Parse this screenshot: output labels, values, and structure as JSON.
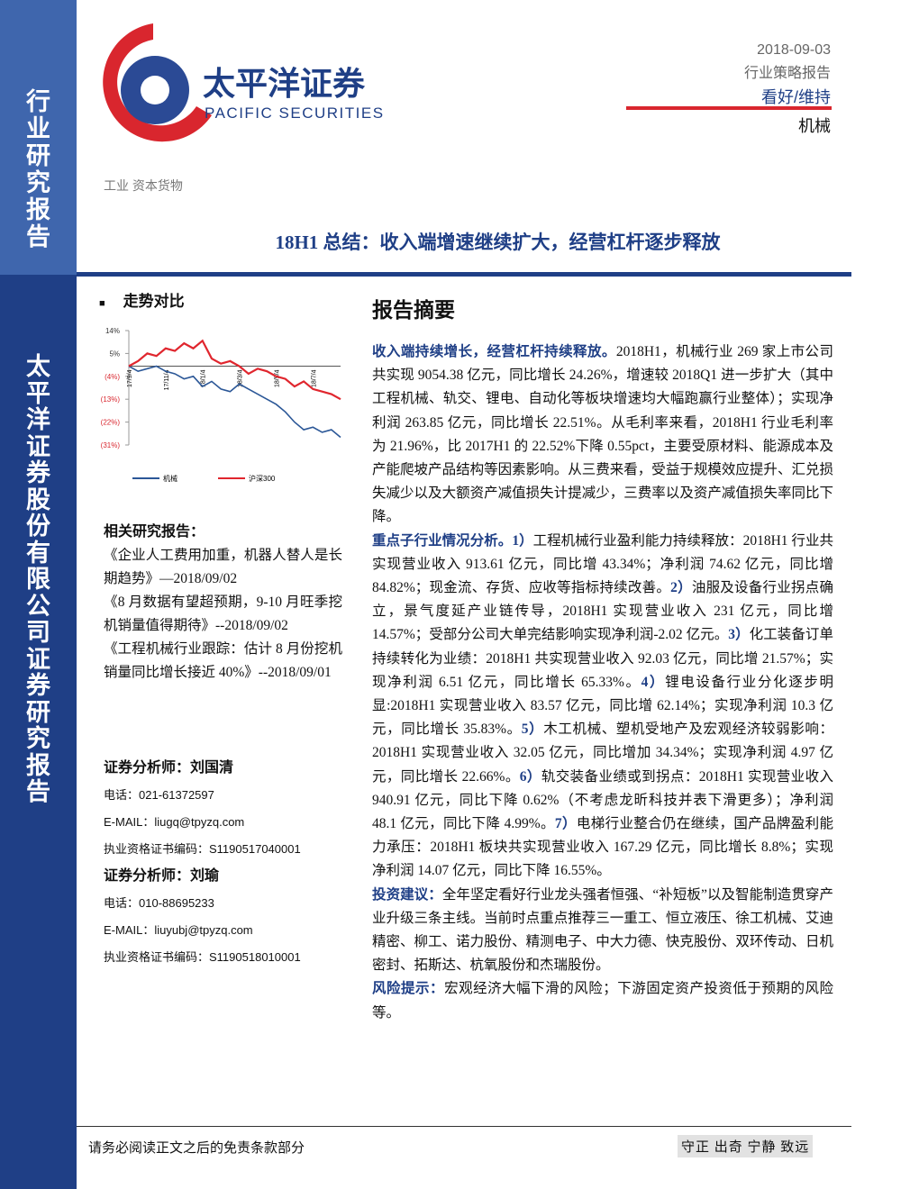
{
  "sidebar": {
    "top": "行业研究报告",
    "bottom": "太平洋证券股份有限公司证券研究报告"
  },
  "logo": {
    "cn": "太平洋证券",
    "en": "PACIFIC SECURITIES"
  },
  "header": {
    "date": "2018-09-03",
    "report_type": "行业策略报告",
    "rating": "看好/维持",
    "industry": "机械"
  },
  "sector": "工业 资本货物",
  "title": "18H1 总结：收入端增速继续扩大，经营杠杆逐步释放",
  "trend": {
    "heading": "走势对比",
    "chart_data": {
      "type": "line",
      "categories": [
        "17/9/4",
        null,
        null,
        null,
        "17/11/4",
        null,
        null,
        null,
        "18/1/4",
        null,
        null,
        null,
        "18/3/4",
        null,
        null,
        null,
        "18/5/4",
        null,
        null,
        null,
        "18/7/4",
        null,
        null,
        null
      ],
      "series": [
        {
          "name": "机械",
          "color": "#2b5797",
          "values": [
            0,
            -2,
            -1,
            0,
            -2,
            -3,
            -5,
            -4,
            -8,
            -6,
            -9,
            -10,
            -7,
            -9,
            -11,
            -13,
            -15,
            -18,
            -22,
            -25,
            -24,
            -26,
            -25,
            -28
          ]
        },
        {
          "name": "沪深300",
          "color": "#e0262e",
          "values": [
            0,
            2,
            5,
            4,
            7,
            6,
            9,
            7,
            10,
            3,
            1,
            2,
            0,
            -3,
            -1,
            -2,
            -4,
            -5,
            -8,
            -6,
            -9,
            -10,
            -11,
            -13
          ]
        }
      ],
      "ylim": [
        -31,
        14
      ],
      "yticks": [
        {
          "value": 14,
          "label": "14%"
        },
        {
          "value": 5,
          "label": "5%"
        },
        {
          "value": -4,
          "label": "(4%)"
        },
        {
          "value": -13,
          "label": "(13%)"
        },
        {
          "value": -22,
          "label": "(22%)"
        },
        {
          "value": -31,
          "label": "(31%)"
        }
      ]
    }
  },
  "related": {
    "heading": "相关研究报告：",
    "items": [
      "《企业人工费用加重，机器人替人是长期趋势》—2018/09/02",
      "《8 月数据有望超预期，9-10 月旺季挖机销量值得期待》--2018/09/02",
      "《工程机械行业跟踪：估计 8 月份挖机销量同比增长接近 40%》--2018/09/01"
    ]
  },
  "analysts": [
    {
      "title": "证券分析师：刘国清",
      "phone": "电话：021-61372597",
      "email": "E-MAIL：liugq@tpyzq.com",
      "cert": "执业资格证书编码：S1190517040001"
    },
    {
      "title": "证券分析师：刘瑜",
      "phone": "电话：010-88695233",
      "email": "E-MAIL：liuyubj@tpyzq.com",
      "cert": "执业资格证书编码：S1190518010001"
    }
  ],
  "summary": {
    "heading": "报告摘要",
    "paragraphs": [
      [
        {
          "text": "收入端持续增长，经营杠杆持续释放。",
          "em": true
        },
        {
          "text": "2018H1，机械行业 269 家上市公司共实现 9054.38 亿元，同比增长 24.26%，增速较 2018Q1 进一步扩大（其中工程机械、轨交、锂电、自动化等板块增速均大幅跑赢行业整体）；实现净利润 263.85 亿元，同比增长 22.51%。从毛利率来看，2018H1 行业毛利率为 21.96%，比 2017H1 的 22.52%下降 0.55pct，主要受原材料、能源成本及产能爬坡产品结构等因素影响。从三费来看，受益于规模效应提升、汇兑损失减少以及大额资产减值损失计提减少，三费率以及资产减值损失率同比下降。"
        }
      ],
      [
        {
          "text": "重点子行业情况分析。",
          "em": true
        },
        {
          "text": "1）",
          "em": true
        },
        {
          "text": "工程机械行业盈利能力持续释放：2018H1 行业共实现营业收入 913.61 亿元，同比增 43.34%；净利润 74.62 亿元，同比增 84.82%；现金流、存货、应收等指标持续改善。"
        },
        {
          "text": "2）",
          "em": true
        },
        {
          "text": "油服及设备行业拐点确立，景气度延产业链传导，2018H1 实现营业收入 231 亿元，同比增 14.57%；受部分公司大单完结影响实现净利润-2.02 亿元。"
        },
        {
          "text": "3）",
          "em": true
        },
        {
          "text": "化工装备订单持续转化为业绩：2018H1 共实现营业收入 92.03 亿元，同比增 21.57%；实现净利润 6.51 亿元，同比增长 65.33%。"
        },
        {
          "text": "4）",
          "em": true
        },
        {
          "text": "锂电设备行业分化逐步明显:2018H1 实现营业收入 83.57 亿元，同比增 62.14%；实现净利润 10.3 亿元，同比增长 35.83%。"
        },
        {
          "text": "5）",
          "em": true
        },
        {
          "text": "木工机械、塑机受地产及宏观经济较弱影响：2018H1 实现营业收入 32.05 亿元，同比增加 34.34%；实现净利润 4.97 亿元，同比增长 22.66%。"
        },
        {
          "text": "6）",
          "em": true
        },
        {
          "text": "轨交装备业绩或到拐点：2018H1 实现营业收入 940.91 亿元，同比下降 0.62%（不考虑龙昕科技并表下滑更多）；净利润 48.1 亿元，同比下降 4.99%。"
        },
        {
          "text": "7）",
          "em": true
        },
        {
          "text": "电梯行业整合仍在继续，国产品牌盈利能力承压：2018H1 板块共实现营业收入 167.29 亿元，同比增长 8.8%；实现净利润 14.07 亿元，同比下降 16.55%。"
        }
      ],
      [
        {
          "text": "投资建议：",
          "em": true
        },
        {
          "text": "全年坚定看好行业龙头强者恒强、“补短板”以及智能制造贯穿产业升级三条主线。当前时点重点推荐三一重工、恒立液压、徐工机械、艾迪精密、柳工、诺力股份、精测电子、中大力德、快克股份、双环传动、日机密封、拓斯达、杭氧股份和杰瑞股份。"
        }
      ],
      [
        {
          "text": "风险提示：",
          "em": true
        },
        {
          "text": "宏观经济大幅下滑的风险；下游固定资产投资低于预期的风险等。"
        }
      ]
    ]
  },
  "footer": {
    "disclaimer": "请务必阅读正文之后的免责条款部分",
    "motto": "守正 出奇 宁静 致远"
  }
}
